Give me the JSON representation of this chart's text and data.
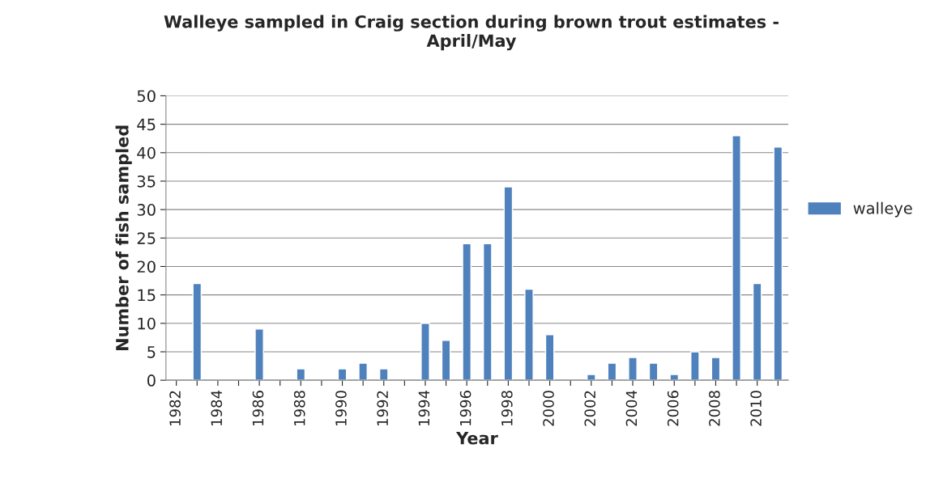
{
  "chart_data": {
    "type": "bar",
    "title": "Walleye sampled in Craig section during brown trout estimates -\nApril/May",
    "xlabel": "Year",
    "ylabel": "Number of fish sampled",
    "categories": [
      "1982",
      null,
      "1984",
      null,
      "1986",
      null,
      "1988",
      null,
      "1990",
      null,
      "1992",
      null,
      "1994",
      null,
      "1996",
      null,
      "1998",
      null,
      "2000",
      null,
      "2002",
      null,
      "2004",
      null,
      "2006",
      null,
      "2008",
      null,
      "2010",
      null
    ],
    "series": [
      {
        "name": "walleye",
        "color": "#4f81bd",
        "values": [
          null,
          17,
          null,
          null,
          9,
          null,
          2,
          null,
          2,
          3,
          2,
          null,
          10,
          7,
          24,
          24,
          34,
          16,
          8,
          null,
          1,
          3,
          4,
          3,
          1,
          5,
          4,
          43,
          17,
          41
        ]
      }
    ],
    "ylim": [
      0,
      50
    ],
    "yticks": [
      0,
      5,
      10,
      15,
      20,
      25,
      30,
      35,
      40,
      45,
      50
    ],
    "grid": "y",
    "legend": "right"
  }
}
